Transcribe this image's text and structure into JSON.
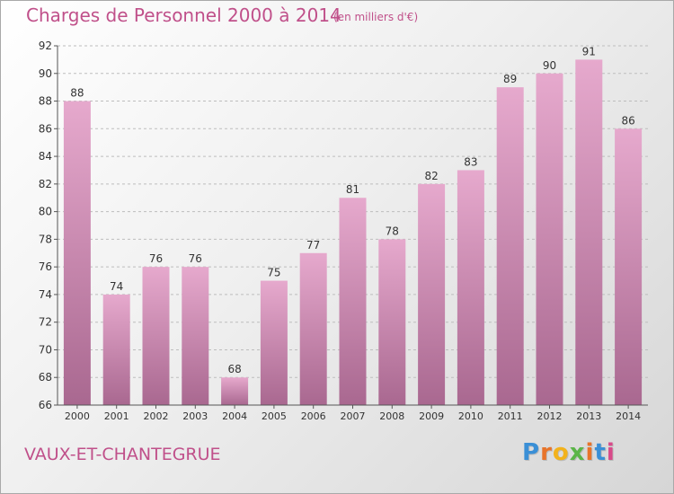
{
  "header": {
    "title": "Charges de Personnel 2000 à 2014",
    "subtitle": "(en milliers d'€)"
  },
  "footer": {
    "city": "VAUX-ET-CHANTEGRUE",
    "logo": "Proxiti"
  },
  "colors": {
    "accent": "#c0508a",
    "bar_top": "#e6a9cd",
    "bar_bottom": "#a96890",
    "axis": "#555555"
  },
  "chart_data": {
    "type": "bar",
    "categories": [
      "2000",
      "2001",
      "2002",
      "2003",
      "2004",
      "2005",
      "2006",
      "2007",
      "2008",
      "2009",
      "2010",
      "2011",
      "2012",
      "2013",
      "2014"
    ],
    "values": [
      88,
      74,
      76,
      76,
      68,
      75,
      77,
      81,
      78,
      82,
      83,
      89,
      90,
      91,
      86
    ],
    "ylim": [
      66,
      92
    ],
    "yticks": [
      66,
      68,
      70,
      72,
      74,
      76,
      78,
      80,
      82,
      84,
      86,
      88,
      90,
      92
    ],
    "grid": "horizontal dashed",
    "legend": "none"
  }
}
